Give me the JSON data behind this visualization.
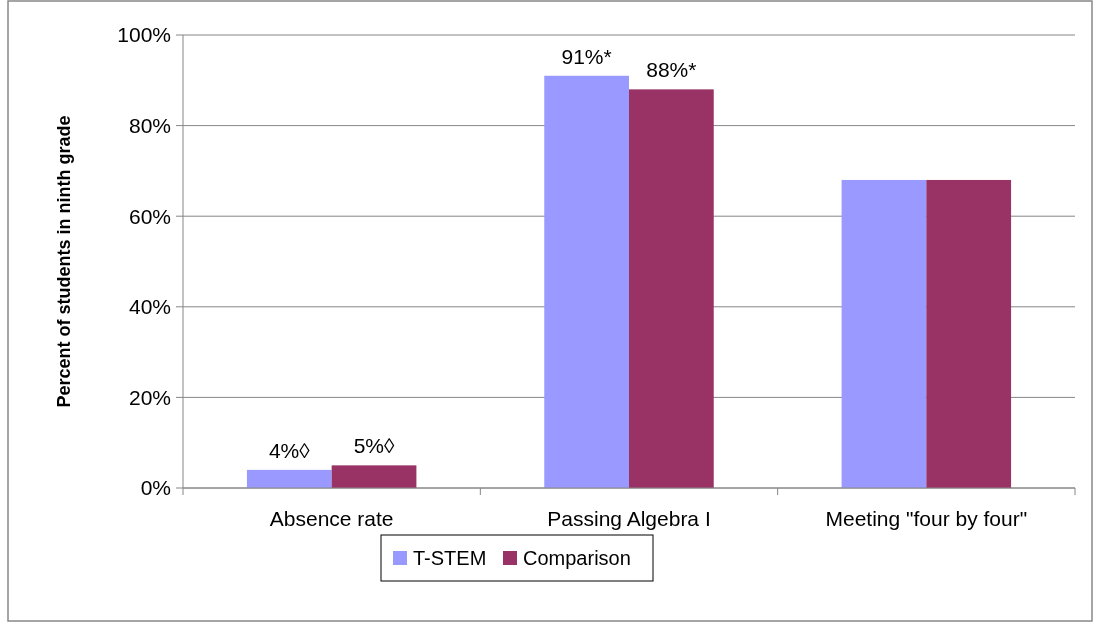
{
  "chart_data": {
    "type": "bar",
    "ylabel": "Percent of students in ninth grade",
    "categories": [
      "Absence rate",
      "Passing Algebra I",
      "Meeting \"four by four\""
    ],
    "series": [
      {
        "name": "T-STEM",
        "color": "#9999ff",
        "values": [
          4,
          91,
          68
        ],
        "value_labels": [
          "4%◊",
          "91%*",
          null
        ]
      },
      {
        "name": "Comparison",
        "color": "#993366",
        "values": [
          5,
          88,
          68
        ],
        "value_labels": [
          "5%◊",
          "88%*",
          null
        ]
      }
    ],
    "ylim": [
      0,
      100
    ],
    "yticks": [
      {
        "value": 0,
        "label": "0%"
      },
      {
        "value": 20,
        "label": "20%"
      },
      {
        "value": 40,
        "label": "40%"
      },
      {
        "value": 60,
        "label": "60%"
      },
      {
        "value": 80,
        "label": "80%"
      },
      {
        "value": 100,
        "label": "100%"
      }
    ],
    "grid": "y",
    "legend": "bottom"
  }
}
